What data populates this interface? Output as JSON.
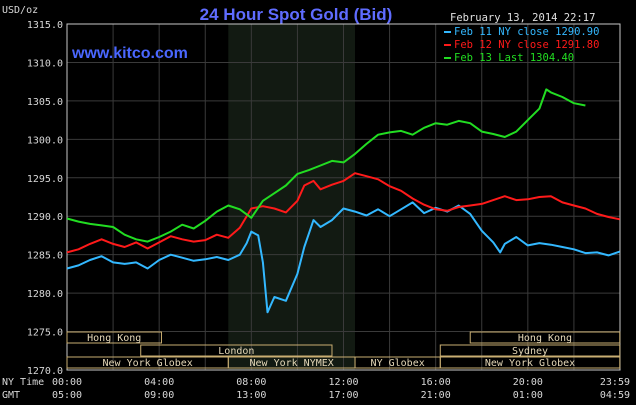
{
  "chart_data": {
    "type": "line",
    "title": "24 Hour Spot Gold (Bid)",
    "date_label": "February 13, 2014 22:17",
    "website": "www.kitco.com",
    "y_axis_unit": "USD/oz",
    "ylim": [
      1270,
      1315
    ],
    "y_ticks": [
      "1315.0",
      "1310.0",
      "1305.0",
      "1300.0",
      "1295.0",
      "1290.0",
      "1285.0",
      "1280.0",
      "1275.0",
      "1270.0"
    ],
    "x_axis_rows": [
      {
        "label": "NY Time",
        "ticks": [
          "00:00",
          "04:00",
          "08:00",
          "12:00",
          "16:00",
          "20:00",
          "23:59"
        ]
      },
      {
        "label": "GMT",
        "ticks": [
          "05:00",
          "09:00",
          "13:00",
          "17:00",
          "21:00",
          "01:00",
          "04:59"
        ]
      }
    ],
    "grid": true,
    "legend_position": "top-right",
    "sessions": [
      {
        "name": "Hong Kong",
        "start": 0,
        "end": 4.1
      },
      {
        "name": "London",
        "start": 3.2,
        "end": 11.5
      },
      {
        "name": "New York Globex",
        "start": 0,
        "end": 7.0
      },
      {
        "name": "New York NYMEX",
        "start": 7.0,
        "end": 12.5
      },
      {
        "name": "NY Globex",
        "start": 12.5,
        "end": 16.2
      },
      {
        "name": "Hong Kong",
        "start": 17.5,
        "end": 23.99
      },
      {
        "name": "Sydney",
        "start": 16.2,
        "end": 23.99
      },
      {
        "name": "New York Globex",
        "start": 16.2,
        "end": 23.99
      }
    ],
    "series": [
      {
        "name": "Feb 11 NY close",
        "value": "1290.90",
        "color": "#33b8ff",
        "points": [
          [
            0,
            1283.2
          ],
          [
            0.5,
            1283.6
          ],
          [
            1,
            1284.3
          ],
          [
            1.5,
            1284.8
          ],
          [
            2,
            1284.0
          ],
          [
            2.5,
            1283.8
          ],
          [
            3,
            1284.0
          ],
          [
            3.5,
            1283.2
          ],
          [
            4,
            1284.3
          ],
          [
            4.5,
            1285.0
          ],
          [
            5,
            1284.6
          ],
          [
            5.5,
            1284.2
          ],
          [
            6,
            1284.4
          ],
          [
            6.5,
            1284.7
          ],
          [
            7,
            1284.3
          ],
          [
            7.5,
            1285.0
          ],
          [
            7.8,
            1286.5
          ],
          [
            8,
            1288.0
          ],
          [
            8.3,
            1287.5
          ],
          [
            8.5,
            1284.0
          ],
          [
            8.7,
            1277.5
          ],
          [
            9,
            1279.5
          ],
          [
            9.5,
            1279.0
          ],
          [
            10,
            1282.5
          ],
          [
            10.3,
            1286.0
          ],
          [
            10.7,
            1289.5
          ],
          [
            11,
            1288.6
          ],
          [
            11.5,
            1289.5
          ],
          [
            12,
            1291.0
          ],
          [
            12.5,
            1290.6
          ],
          [
            13,
            1290.1
          ],
          [
            13.5,
            1290.9
          ],
          [
            14,
            1290.0
          ],
          [
            14.5,
            1290.9
          ],
          [
            15,
            1291.8
          ],
          [
            15.5,
            1290.4
          ],
          [
            16,
            1291.1
          ],
          [
            16.5,
            1290.6
          ],
          [
            17,
            1291.4
          ],
          [
            17.5,
            1290.3
          ],
          [
            18,
            1288.1
          ],
          [
            18.5,
            1286.6
          ],
          [
            18.8,
            1285.3
          ],
          [
            19,
            1286.4
          ],
          [
            19.5,
            1287.3
          ],
          [
            20,
            1286.2
          ],
          [
            20.5,
            1286.5
          ],
          [
            21,
            1286.3
          ],
          [
            21.5,
            1286.0
          ],
          [
            22,
            1285.7
          ],
          [
            22.5,
            1285.2
          ],
          [
            23,
            1285.3
          ],
          [
            23.5,
            1284.9
          ],
          [
            23.99,
            1285.4
          ]
        ]
      },
      {
        "name": "Feb 12 NY close",
        "value": "1291.80",
        "color": "#ff1a1a",
        "points": [
          [
            0,
            1285.3
          ],
          [
            0.5,
            1285.7
          ],
          [
            1,
            1286.4
          ],
          [
            1.5,
            1287.0
          ],
          [
            2,
            1286.4
          ],
          [
            2.5,
            1286.0
          ],
          [
            3,
            1286.6
          ],
          [
            3.5,
            1285.8
          ],
          [
            4,
            1286.6
          ],
          [
            4.5,
            1287.4
          ],
          [
            5,
            1287.0
          ],
          [
            5.5,
            1286.7
          ],
          [
            6,
            1286.9
          ],
          [
            6.5,
            1287.6
          ],
          [
            7,
            1287.2
          ],
          [
            7.5,
            1288.5
          ],
          [
            7.8,
            1290.0
          ],
          [
            8,
            1291.0
          ],
          [
            8.5,
            1291.3
          ],
          [
            9,
            1291.0
          ],
          [
            9.5,
            1290.5
          ],
          [
            10,
            1292.0
          ],
          [
            10.3,
            1294.0
          ],
          [
            10.7,
            1294.6
          ],
          [
            11,
            1293.5
          ],
          [
            11.5,
            1294.1
          ],
          [
            12,
            1294.6
          ],
          [
            12.5,
            1295.6
          ],
          [
            13,
            1295.2
          ],
          [
            13.5,
            1294.8
          ],
          [
            14,
            1293.9
          ],
          [
            14.5,
            1293.3
          ],
          [
            15,
            1292.3
          ],
          [
            15.5,
            1291.5
          ],
          [
            16,
            1290.9
          ],
          [
            16.5,
            1290.7
          ],
          [
            17,
            1291.2
          ],
          [
            17.5,
            1291.4
          ],
          [
            18,
            1291.6
          ],
          [
            18.5,
            1292.1
          ],
          [
            19,
            1292.6
          ],
          [
            19.5,
            1292.1
          ],
          [
            20,
            1292.2
          ],
          [
            20.5,
            1292.5
          ],
          [
            21,
            1292.6
          ],
          [
            21.5,
            1291.8
          ],
          [
            22,
            1291.4
          ],
          [
            22.5,
            1291.0
          ],
          [
            23,
            1290.3
          ],
          [
            23.5,
            1289.9
          ],
          [
            23.99,
            1289.6
          ]
        ]
      },
      {
        "name": "Feb 13 Last",
        "value": "1304.40",
        "color": "#22dd22",
        "points": [
          [
            0,
            1289.7
          ],
          [
            0.5,
            1289.3
          ],
          [
            1,
            1289.0
          ],
          [
            1.5,
            1288.8
          ],
          [
            2,
            1288.6
          ],
          [
            2.5,
            1287.6
          ],
          [
            3,
            1287.0
          ],
          [
            3.5,
            1286.7
          ],
          [
            4,
            1287.3
          ],
          [
            4.5,
            1288.0
          ],
          [
            5,
            1288.9
          ],
          [
            5.5,
            1288.4
          ],
          [
            6,
            1289.4
          ],
          [
            6.5,
            1290.6
          ],
          [
            7,
            1291.4
          ],
          [
            7.5,
            1290.9
          ],
          [
            8,
            1289.8
          ],
          [
            8.5,
            1292.0
          ],
          [
            9,
            1293.0
          ],
          [
            9.5,
            1294.0
          ],
          [
            10,
            1295.5
          ],
          [
            10.5,
            1296.0
          ],
          [
            11,
            1296.6
          ],
          [
            11.5,
            1297.2
          ],
          [
            12,
            1297.0
          ],
          [
            12.5,
            1298.1
          ],
          [
            13,
            1299.4
          ],
          [
            13.5,
            1300.6
          ],
          [
            14,
            1300.9
          ],
          [
            14.5,
            1301.1
          ],
          [
            15,
            1300.6
          ],
          [
            15.5,
            1301.5
          ],
          [
            16,
            1302.1
          ],
          [
            16.5,
            1301.9
          ],
          [
            17,
            1302.4
          ],
          [
            17.5,
            1302.1
          ],
          [
            18,
            1301.0
          ],
          [
            18.5,
            1300.7
          ],
          [
            19,
            1300.3
          ],
          [
            19.5,
            1301.0
          ],
          [
            20,
            1302.5
          ],
          [
            20.5,
            1304.0
          ],
          [
            20.8,
            1306.5
          ],
          [
            21,
            1306.1
          ],
          [
            21.5,
            1305.5
          ],
          [
            22,
            1304.7
          ],
          [
            22.5,
            1304.4
          ]
        ]
      }
    ]
  }
}
